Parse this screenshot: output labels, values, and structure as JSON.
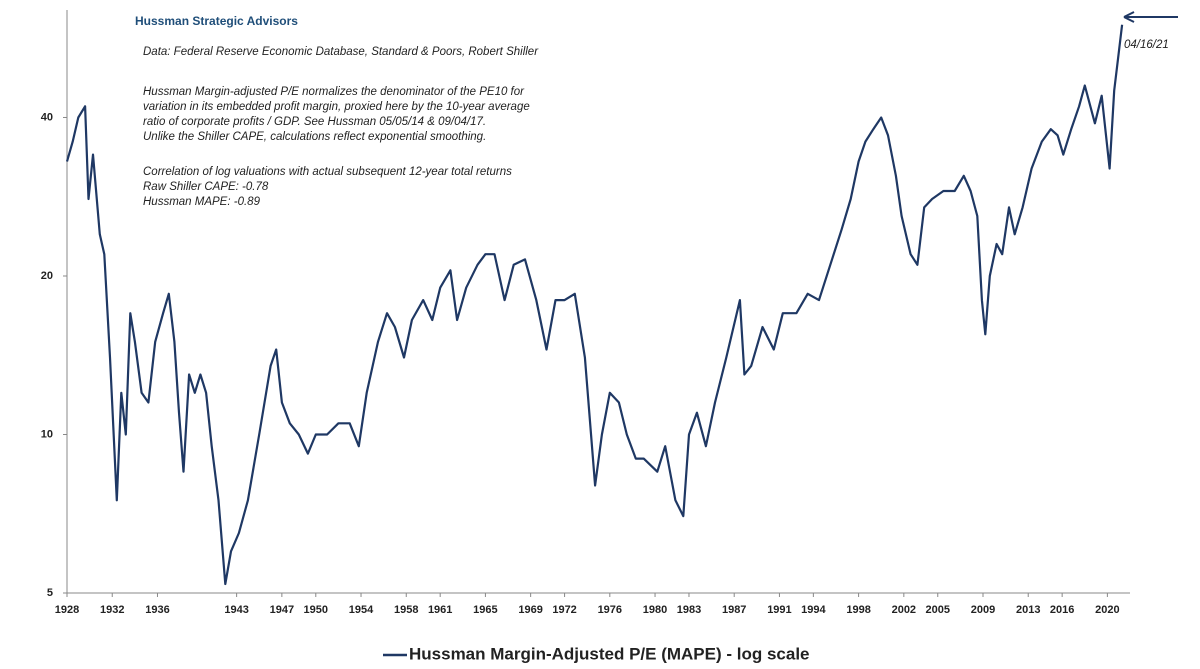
{
  "chart_data": {
    "type": "line",
    "title": "Hussman Strategic Advisors",
    "notes": [
      "Data: Federal Reserve Economic Database, Standard & Poors, Robert Shiller",
      "Hussman Margin-adjusted P/E normalizes the denominator of the PE10 for",
      "variation in its embedded profit margin, proxied here by the 10-year average",
      "ratio of corporate profits / GDP. See Hussman 05/05/14  & 09/04/17.",
      "Unlike the Shiller CAPE, calculations reflect exponential smoothing.",
      "Correlation of log valuations with actual subsequent 12-year total returns",
      "Raw Shiller CAPE: -0.78",
      "Hussman MAPE: -0.89"
    ],
    "annotation": "04/16/21",
    "log_scale": true,
    "legend": "bottom",
    "x": [
      1928.0,
      1928.5,
      1929.0,
      1929.6,
      1929.9,
      1930.3,
      1930.9,
      1931.3,
      1931.8,
      1932.4,
      1932.8,
      1933.2,
      1933.6,
      1934.0,
      1934.6,
      1935.2,
      1935.8,
      1936.5,
      1937.0,
      1937.5,
      1937.9,
      1938.3,
      1938.8,
      1939.3,
      1939.8,
      1940.3,
      1940.8,
      1941.4,
      1942.0,
      1942.5,
      1943.2,
      1944.0,
      1945.0,
      1946.0,
      1946.5,
      1947.0,
      1947.7,
      1948.5,
      1949.3,
      1950.0,
      1951.0,
      1952.0,
      1953.0,
      1953.8,
      1954.5,
      1955.5,
      1956.3,
      1957.0,
      1957.8,
      1958.5,
      1959.5,
      1960.3,
      1961.0,
      1961.9,
      1962.5,
      1963.3,
      1964.3,
      1965.0,
      1965.8,
      1966.7,
      1967.5,
      1968.5,
      1969.5,
      1970.4,
      1971.2,
      1972.0,
      1972.9,
      1973.8,
      1974.7,
      1975.3,
      1976.0,
      1976.8,
      1977.5,
      1978.3,
      1979.0,
      1980.2,
      1980.9,
      1981.8,
      1982.5,
      1983.0,
      1983.7,
      1984.5,
      1985.3,
      1986.3,
      1987.5,
      1987.9,
      1988.5,
      1989.5,
      1990.5,
      1991.3,
      1992.5,
      1993.5,
      1994.5,
      1995.5,
      1996.5,
      1997.3,
      1998.0,
      1998.6,
      1999.3,
      2000.0,
      2000.6,
      2001.3,
      2001.8,
      2002.6,
      2003.2,
      2003.8,
      2004.5,
      2005.5,
      2006.5,
      2007.3,
      2007.9,
      2008.5,
      2008.9,
      2009.2,
      2009.6,
      2010.2,
      2010.7,
      2011.3,
      2011.8,
      2012.5,
      2013.3,
      2014.2,
      2015.0,
      2015.6,
      2016.1,
      2016.8,
      2017.5,
      2018.0,
      2018.9,
      2019.5,
      2020.2,
      2020.6,
      2021.0,
      2021.3
    ],
    "series": [
      {
        "name": "Hussman Margin-Adjusted P/E (MAPE) - log scale",
        "color": "#1f3864",
        "values": [
          33,
          36,
          40,
          42,
          28,
          34,
          24,
          22,
          14,
          7.5,
          12,
          10,
          17,
          15,
          12,
          11.5,
          15,
          17,
          18.5,
          15,
          11,
          8.5,
          13,
          12,
          13,
          12,
          9.5,
          7.5,
          5.2,
          6,
          6.5,
          7.5,
          10,
          13.5,
          14.5,
          11.5,
          10.5,
          10,
          9.2,
          10,
          10,
          10.5,
          10.5,
          9.5,
          12,
          15,
          17,
          16,
          14,
          16.5,
          18,
          16.5,
          19,
          20.5,
          16.5,
          19,
          21,
          22,
          22,
          18,
          21,
          21.5,
          18,
          14.5,
          18,
          18,
          18.5,
          14,
          8,
          10,
          12,
          11.5,
          10,
          9,
          9,
          8.5,
          9.5,
          7.5,
          7.0,
          10,
          11,
          9.5,
          11.5,
          14,
          18,
          13,
          13.5,
          16,
          14.5,
          17,
          17,
          18.5,
          18,
          21,
          24.5,
          28,
          33,
          36,
          38,
          40,
          37,
          31,
          26,
          22,
          21,
          27,
          28,
          29,
          29,
          31,
          29,
          26,
          18,
          15.5,
          20,
          23,
          22,
          27,
          24,
          27,
          32,
          36,
          38,
          37,
          34,
          38,
          42,
          46,
          39,
          44,
          32,
          45,
          53,
          60
        ]
      }
    ],
    "xlim": [
      1928,
      2022
    ],
    "xticks": [
      1928,
      1932,
      1936,
      1943,
      1947,
      1950,
      1954,
      1958,
      1961,
      1965,
      1969,
      1972,
      1976,
      1980,
      1983,
      1987,
      1991,
      1994,
      1998,
      2002,
      2005,
      2009,
      2013,
      2016,
      2020
    ],
    "ylim": [
      5,
      64
    ],
    "yticks": [
      5,
      10,
      20,
      40
    ]
  }
}
